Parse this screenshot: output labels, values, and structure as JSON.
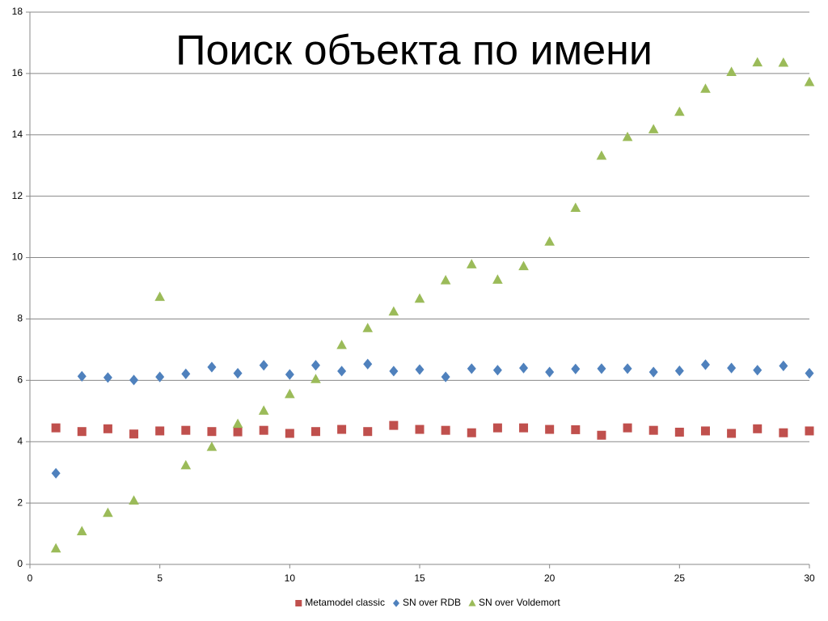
{
  "chart_data": {
    "type": "scatter",
    "title": "Поиск объекта по имени",
    "x": [
      1,
      2,
      3,
      4,
      5,
      6,
      7,
      8,
      9,
      10,
      11,
      12,
      13,
      14,
      15,
      16,
      17,
      18,
      19,
      20,
      21,
      22,
      23,
      24,
      25,
      26,
      27,
      28,
      29,
      30
    ],
    "series": [
      {
        "name": "Metamodel classic",
        "color": "#c0504d",
        "marker": "square",
        "values": [
          4.45,
          4.33,
          4.42,
          4.25,
          4.35,
          4.37,
          4.33,
          4.32,
          4.37,
          4.27,
          4.33,
          4.4,
          4.33,
          4.53,
          4.4,
          4.37,
          4.29,
          4.45,
          4.45,
          4.4,
          4.39,
          4.21,
          4.45,
          4.37,
          4.31,
          4.35,
          4.27,
          4.42,
          4.29,
          4.35
        ]
      },
      {
        "name": "SN over RDB",
        "color": "#4f81bd",
        "marker": "diamond",
        "values": [
          2.97,
          6.13,
          6.09,
          6.01,
          6.11,
          6.21,
          6.43,
          6.23,
          6.49,
          6.19,
          6.49,
          6.3,
          6.53,
          6.3,
          6.35,
          6.11,
          6.38,
          6.33,
          6.4,
          6.27,
          6.37,
          6.38,
          6.38,
          6.27,
          6.31,
          6.51,
          6.4,
          6.33,
          6.47,
          6.23
        ]
      },
      {
        "name": "SN over Voldemort",
        "color": "#9bbb59",
        "marker": "triangle",
        "values": [
          0.52,
          1.08,
          1.68,
          2.08,
          8.72,
          3.23,
          3.83,
          4.58,
          5.01,
          5.55,
          6.04,
          7.15,
          7.7,
          8.24,
          8.66,
          9.26,
          9.78,
          9.28,
          9.72,
          10.52,
          11.62,
          13.32,
          13.93,
          14.18,
          14.75,
          15.5,
          16.05,
          16.36,
          16.35,
          15.72
        ]
      }
    ],
    "xlim": [
      0,
      30
    ],
    "xticks": [
      0,
      5,
      10,
      15,
      20,
      25,
      30
    ],
    "ylim": [
      0,
      18
    ],
    "yticks": [
      0,
      2,
      4,
      6,
      8,
      10,
      12,
      14,
      16,
      18
    ],
    "grid": true,
    "legend": "bottom"
  }
}
